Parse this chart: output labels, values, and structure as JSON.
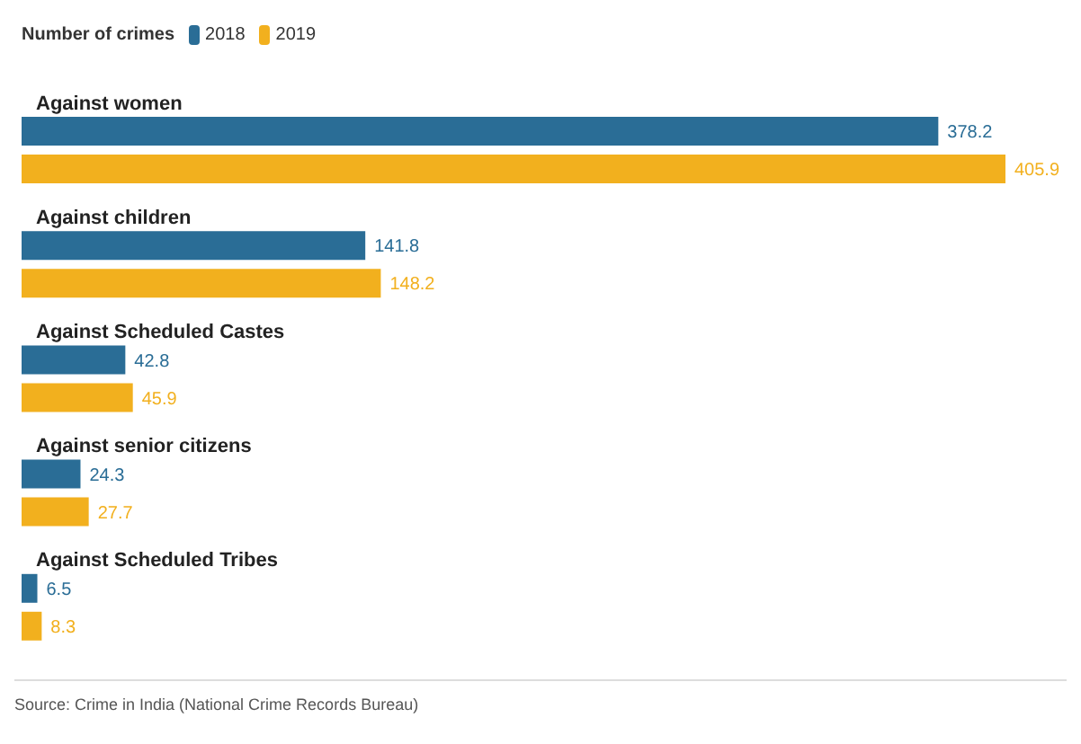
{
  "chart_data": {
    "type": "bar",
    "orientation": "horizontal",
    "legend_title": "Number of crimes",
    "legend": "top left",
    "data_labels": true,
    "categories": [
      "Against women",
      "Against children",
      "Against Scheduled Castes",
      "Against senior citizens",
      "Against Scheduled Tribes"
    ],
    "series": [
      {
        "name": "2018",
        "color": "#2a6d96",
        "values": [
          378.2,
          141.8,
          42.8,
          24.3,
          6.5
        ]
      },
      {
        "name": "2019",
        "color": "#f2b01e",
        "values": [
          405.9,
          148.2,
          45.9,
          27.7,
          8.3
        ]
      }
    ],
    "annotations": [
      "Source: Crime in India (National Crime Records Bureau)"
    ]
  }
}
